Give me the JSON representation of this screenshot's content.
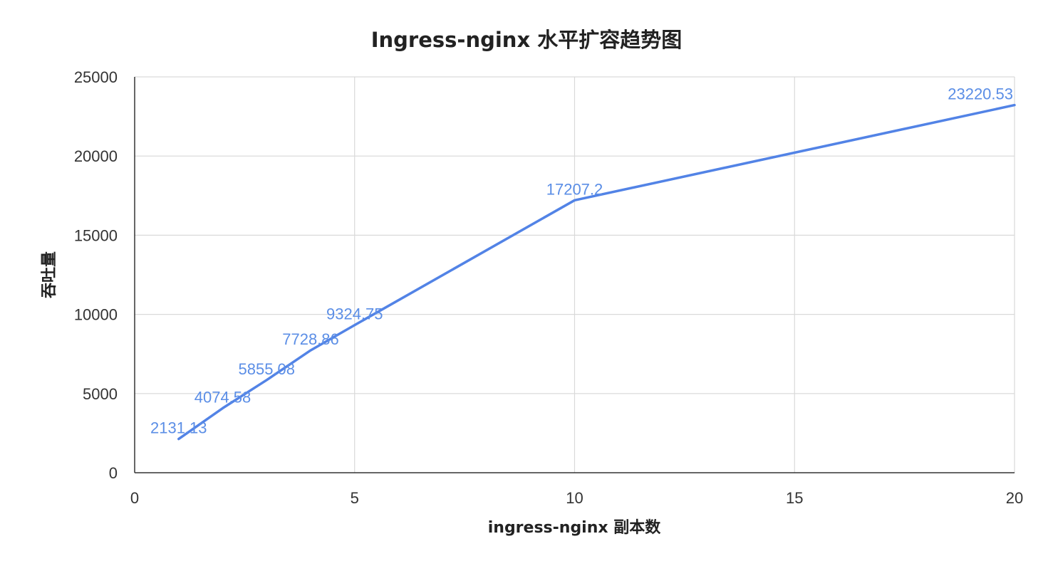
{
  "colors": {
    "line": "#5283e6",
    "label": "#5b8ee6",
    "grid": "#d9d9d9",
    "axis": "#333333",
    "text": "#222222"
  },
  "chart_data": {
    "type": "line",
    "title": "Ingress-nginx 水平扩容趋势图",
    "xlabel": "ingress-nginx 副本数",
    "ylabel": "吞吐量",
    "xlim": [
      0,
      20
    ],
    "ylim": [
      0,
      25000
    ],
    "xticks": [
      0,
      5,
      10,
      15,
      20
    ],
    "yticks": [
      0,
      5000,
      10000,
      15000,
      20000,
      25000
    ],
    "grid": true,
    "series": [
      {
        "x": [
          1,
          2,
          3,
          4,
          5,
          10,
          20
        ],
        "y": [
          2131.13,
          4074.58,
          5855.08,
          7728.86,
          9324.75,
          17207.2,
          23220.53
        ],
        "labels": [
          "2131.13",
          "4074.58",
          "5855.08",
          "7728.86",
          "9324.75",
          "17207.2",
          "23220.53"
        ]
      }
    ]
  }
}
